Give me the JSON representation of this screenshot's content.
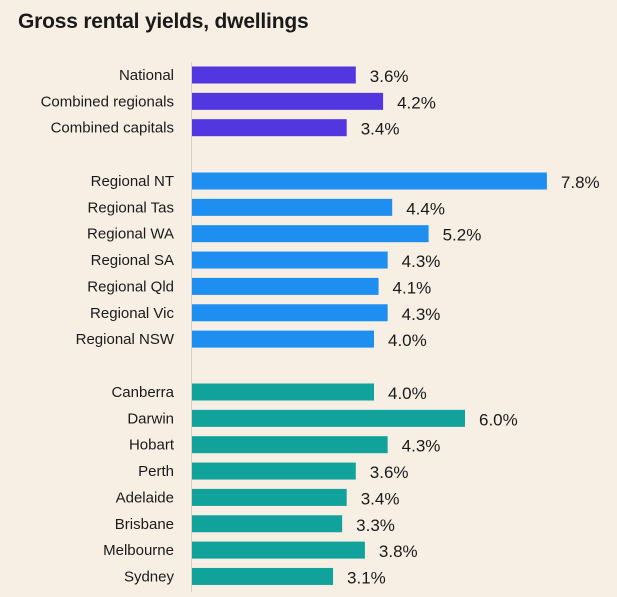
{
  "chart_data": {
    "type": "bar",
    "orientation": "horizontal",
    "title": "Gross rental yields, dwellings",
    "xlabel": "",
    "ylabel": "",
    "value_format": "percent_1dp",
    "grid": false,
    "legend": "none",
    "groups": [
      {
        "color": "#5236e0",
        "categories": [
          "National",
          "Combined regionals",
          "Combined capitals"
        ],
        "values": [
          3.6,
          4.2,
          3.4
        ]
      },
      {
        "color": "#1f8ef1",
        "categories": [
          "Regional NT",
          "Regional Tas",
          "Regional WA",
          "Regional SA",
          "Regional Qld",
          "Regional Vic",
          "Regional NSW"
        ],
        "values": [
          7.8,
          4.4,
          5.2,
          4.3,
          4.1,
          4.3,
          4.0
        ]
      },
      {
        "color": "#11a39b",
        "categories": [
          "Canberra",
          "Darwin",
          "Hobart",
          "Perth",
          "Adelaide",
          "Brisbane",
          "Melbourne",
          "Sydney"
        ],
        "values": [
          4.0,
          6.0,
          4.3,
          3.6,
          3.4,
          3.3,
          3.8,
          3.1
        ]
      }
    ]
  }
}
